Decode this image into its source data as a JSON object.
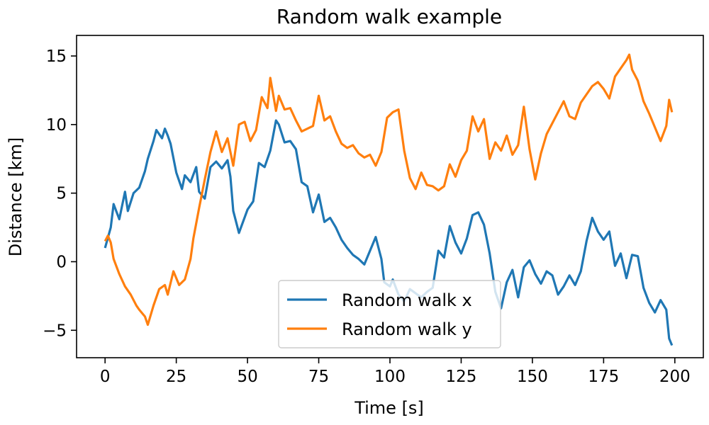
{
  "chart_data": {
    "type": "line",
    "title": "Random walk example",
    "xlabel": "Time [s]",
    "ylabel": "Distance [km]",
    "xlim": [
      -10,
      210
    ],
    "ylim": [
      -7,
      16.5
    ],
    "xticks": [
      0,
      25,
      50,
      75,
      100,
      125,
      150,
      175,
      200
    ],
    "xtick_labels": [
      "0",
      "25",
      "50",
      "75",
      "100",
      "125",
      "150",
      "175",
      "200"
    ],
    "yticks": [
      -5,
      0,
      5,
      10,
      15
    ],
    "ytick_labels": [
      "−5",
      "0",
      "5",
      "10",
      "15"
    ],
    "grid": false,
    "legend_position": "bottom-center",
    "series": [
      {
        "name": "Random walk x",
        "color": "#1f77b4",
        "x": [
          0,
          2,
          3,
          5,
          7,
          8,
          10,
          12,
          14,
          15,
          17,
          18,
          20,
          21,
          22,
          23,
          25,
          27,
          28,
          30,
          32,
          33,
          35,
          37,
          39,
          41,
          43,
          44,
          45,
          47,
          50,
          52,
          54,
          56,
          58,
          60,
          61,
          63,
          65,
          67,
          69,
          71,
          73,
          75,
          77,
          79,
          81,
          83,
          85,
          87,
          89,
          91,
          93,
          95,
          97,
          98,
          100,
          101,
          103,
          105,
          107,
          109,
          111,
          113,
          115,
          117,
          119,
          121,
          123,
          125,
          127,
          129,
          131,
          133,
          135,
          137,
          139,
          141,
          143,
          145,
          147,
          149,
          151,
          153,
          155,
          157,
          159,
          161,
          163,
          165,
          167,
          169,
          171,
          173,
          175,
          177,
          179,
          181,
          183,
          185,
          187,
          189,
          191,
          193,
          195,
          197,
          198,
          199
        ],
        "y": [
          1,
          2.5,
          4.2,
          3.1,
          5.1,
          3.7,
          5.0,
          5.4,
          6.6,
          7.5,
          8.8,
          9.6,
          9.0,
          9.7,
          9.2,
          8.6,
          6.5,
          5.3,
          6.3,
          5.8,
          6.9,
          5.1,
          4.6,
          6.9,
          7.3,
          6.8,
          7.4,
          6.2,
          3.7,
          2.1,
          3.8,
          4.4,
          7.2,
          6.9,
          8.1,
          10.3,
          10.0,
          8.7,
          8.8,
          8.2,
          5.8,
          5.5,
          3.6,
          4.9,
          2.9,
          3.2,
          2.5,
          1.6,
          1.0,
          0.5,
          0.2,
          -0.2,
          0.8,
          1.8,
          0.2,
          -1.5,
          -1.8,
          -1.3,
          -2.4,
          -2.9,
          -2.0,
          -2.3,
          -2.6,
          -2.2,
          -1.9,
          0.8,
          0.3,
          2.6,
          1.4,
          0.6,
          1.7,
          3.4,
          3.6,
          2.7,
          0.6,
          -2.2,
          -3.4,
          -1.5,
          -0.6,
          -2.6,
          -0.4,
          0.1,
          -0.9,
          -1.6,
          -0.7,
          -1.0,
          -2.4,
          -1.8,
          -1.0,
          -1.7,
          -0.7,
          1.5,
          3.2,
          2.2,
          1.6,
          2.2,
          -0.3,
          0.6,
          -1.2,
          0.5,
          0.4,
          -1.9,
          -3.0,
          -3.7,
          -2.8,
          -3.5,
          -5.6,
          -6.1
        ]
      },
      {
        "name": "Random walk y",
        "color": "#ff7f0e",
        "x": [
          0,
          1,
          2,
          3,
          5,
          7,
          9,
          11,
          12,
          14,
          15,
          17,
          19,
          21,
          22,
          24,
          26,
          28,
          30,
          31,
          33,
          35,
          37,
          39,
          41,
          43,
          45,
          47,
          49,
          51,
          53,
          55,
          57,
          58,
          60,
          61,
          63,
          65,
          67,
          69,
          71,
          73,
          75,
          77,
          79,
          81,
          83,
          85,
          87,
          89,
          91,
          93,
          95,
          97,
          99,
          101,
          103,
          105,
          107,
          109,
          111,
          113,
          115,
          117,
          119,
          121,
          123,
          125,
          127,
          129,
          131,
          133,
          135,
          137,
          139,
          141,
          143,
          145,
          147,
          149,
          151,
          153,
          155,
          157,
          159,
          161,
          163,
          165,
          167,
          169,
          171,
          173,
          175,
          177,
          179,
          181,
          183,
          184,
          185,
          187,
          189,
          191,
          193,
          195,
          197,
          198,
          199
        ],
        "y": [
          1.5,
          1.9,
          1.4,
          0.2,
          -0.9,
          -1.8,
          -2.4,
          -3.2,
          -3.5,
          -4.0,
          -4.6,
          -3.2,
          -2.0,
          -1.7,
          -2.4,
          -0.7,
          -1.7,
          -1.3,
          0.2,
          1.7,
          3.9,
          6.0,
          8.0,
          9.5,
          8.0,
          9.0,
          7.0,
          10.0,
          10.2,
          8.8,
          9.6,
          12.0,
          11.2,
          13.4,
          11.0,
          12.1,
          11.1,
          11.2,
          10.3,
          9.5,
          9.7,
          9.9,
          12.1,
          10.3,
          10.6,
          9.5,
          8.6,
          8.3,
          8.5,
          7.9,
          7.6,
          7.8,
          7.0,
          8.0,
          10.5,
          10.9,
          11.1,
          8.1,
          6.1,
          5.3,
          6.5,
          5.6,
          5.5,
          5.2,
          5.5,
          7.1,
          6.2,
          7.4,
          8.1,
          10.6,
          9.5,
          10.4,
          7.5,
          8.7,
          8.1,
          9.2,
          7.8,
          8.5,
          11.3,
          8.2,
          6.0,
          7.9,
          9.3,
          10.1,
          10.9,
          11.7,
          10.6,
          10.4,
          11.6,
          12.2,
          12.8,
          13.1,
          12.6,
          11.9,
          13.5,
          14.1,
          14.7,
          15.1,
          14.0,
          13.2,
          11.7,
          10.8,
          9.8,
          8.8,
          9.9,
          11.8,
          10.9
        ]
      }
    ]
  }
}
